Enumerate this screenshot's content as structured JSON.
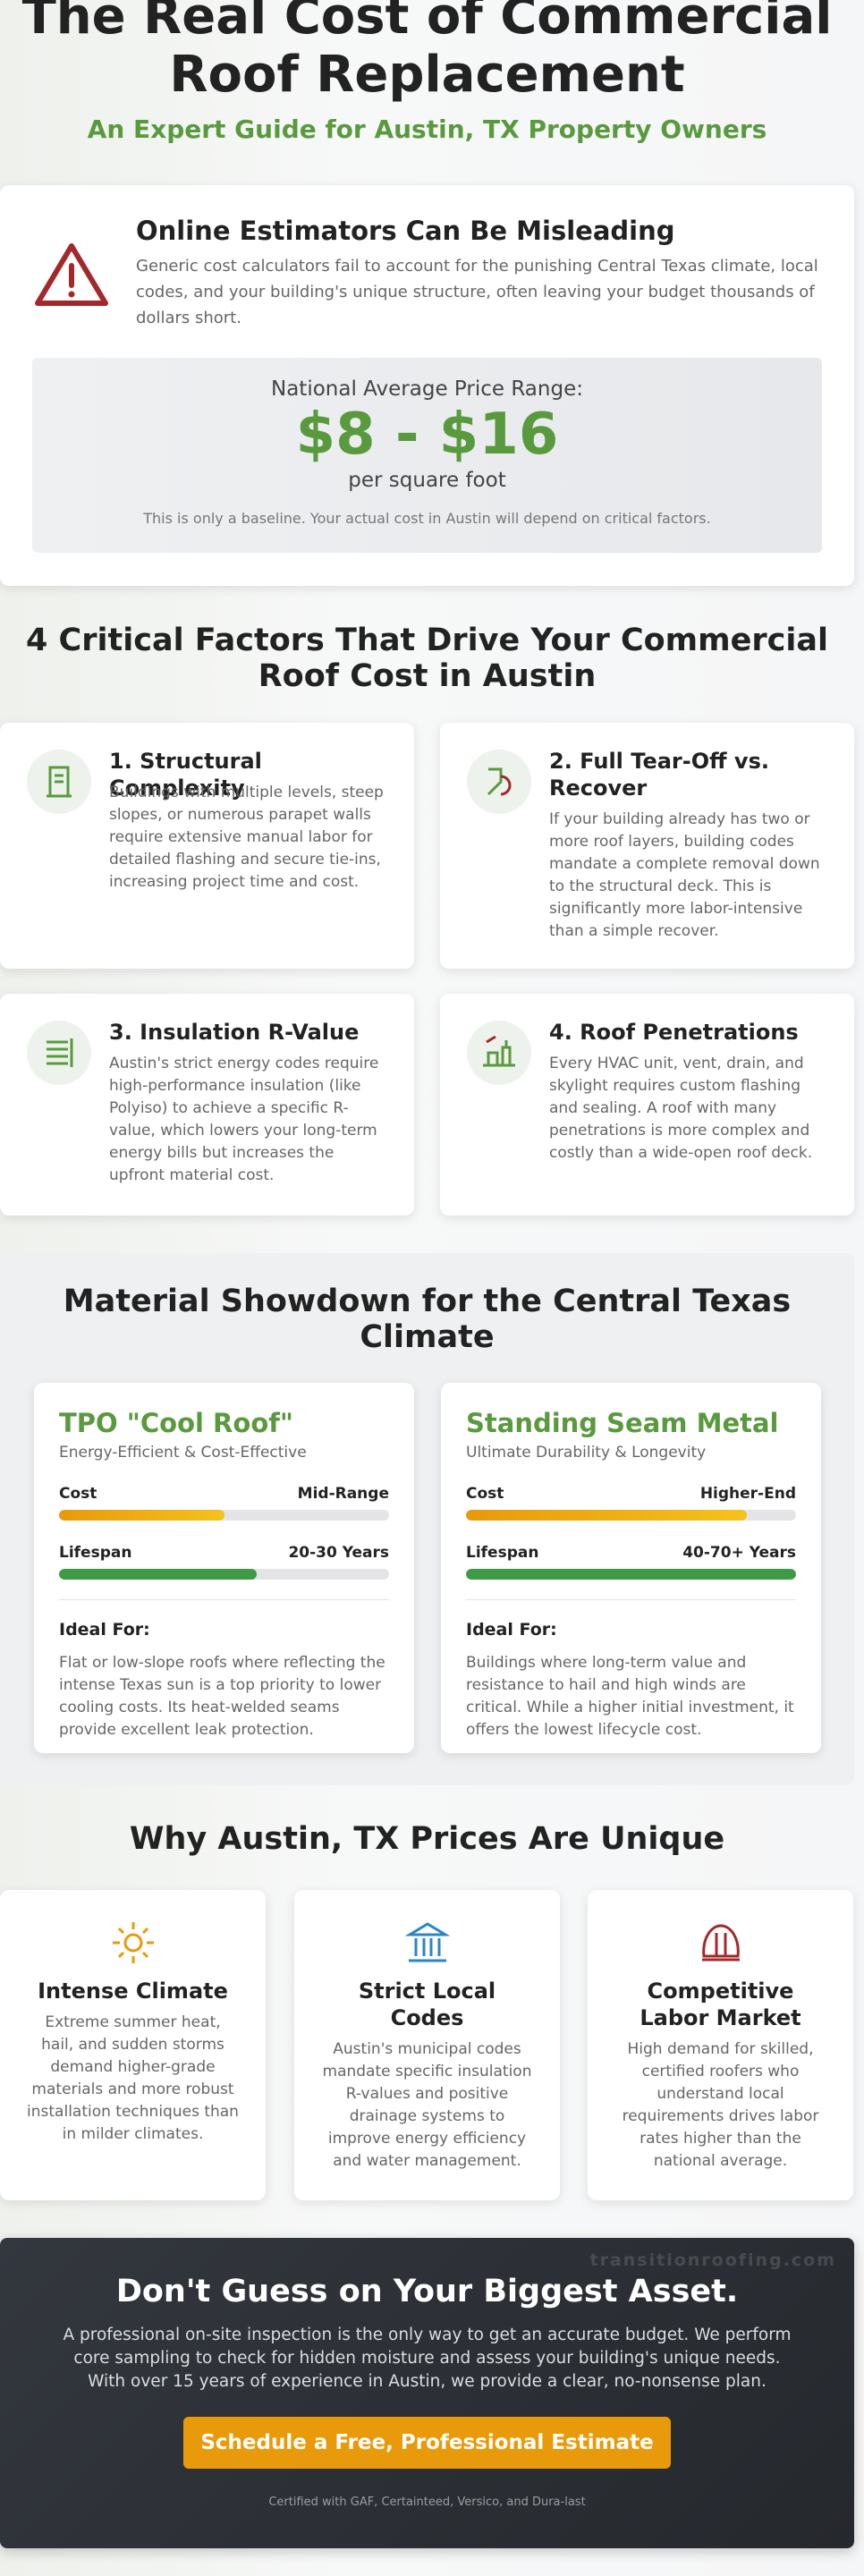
{
  "header": {
    "title": "The Real Cost of Commercial Roof Replacement",
    "subtitle": "An Expert Guide for Austin, TX Property Owners"
  },
  "warning": {
    "heading": "Online Estimators Can Be Misleading",
    "text": "Generic cost calculators fail to account for the punishing Central Texas climate, local codes, and your building's unique structure, often leaving your budget thousands of dollars short.",
    "price_label": "National Average Price Range:",
    "price": "$8 - $16",
    "price_unit": "per square foot",
    "note": "This is only a baseline. Your actual cost in Austin will depend on critical factors."
  },
  "factors": {
    "heading": "4 Critical Factors That Drive Your Commercial Roof Cost in Austin",
    "items": [
      {
        "title": "1. Structural Complexity",
        "text": "Buildings with multiple levels, steep slopes, or numerous parapet walls require extensive manual labor for detailed flashing and secure tie-ins, increasing project time and cost."
      },
      {
        "title": "2. Full Tear-Off vs. Recover",
        "text": "If your building already has two or more roof layers, building codes mandate a complete removal down to the structural deck. This is significantly more labor-intensive than a simple recover."
      },
      {
        "title": "3. Insulation R-Value",
        "text": "Austin's strict energy codes require high-performance insulation (like Polyiso) to achieve a specific R-value, which lowers your long-term energy bills but increases the upfront material cost."
      },
      {
        "title": "4. Roof Penetrations",
        "text": "Every HVAC unit, vent, drain, and skylight requires custom flashing and sealing. A roof with many penetrations is more complex and costly than a wide-open roof deck."
      }
    ]
  },
  "materials": {
    "heading": "Material Showdown for the Central Texas Climate",
    "items": [
      {
        "name": "TPO \"Cool Roof\"",
        "tagline": "Energy-Efficient & Cost-Effective",
        "cost_label": "Cost",
        "cost_value": "Mid-Range",
        "lifespan_label": "Lifespan",
        "lifespan_value": "20-30 Years",
        "ideal_label": "Ideal For:",
        "ideal_text": "Flat or low-slope roofs where reflecting the intense Texas sun is a top priority to lower cooling costs. Its heat-welded seams provide excellent leak protection."
      },
      {
        "name": "Standing Seam Metal",
        "tagline": "Ultimate Durability & Longevity",
        "cost_label": "Cost",
        "cost_value": "Higher-End",
        "lifespan_label": "Lifespan",
        "lifespan_value": "40-70+ Years",
        "ideal_label": "Ideal For:",
        "ideal_text": "Buildings where long-term value and resistance to hail and high winds are critical. While a higher initial investment, it offers the lowest lifecycle cost."
      }
    ]
  },
  "unique": {
    "heading": "Why Austin, TX Prices Are Unique",
    "items": [
      {
        "title": "Intense Climate",
        "text": "Extreme summer heat, hail, and sudden storms demand higher-grade materials and more robust installation techniques than in milder climates."
      },
      {
        "title": "Strict Local Codes",
        "text": "Austin's municipal codes mandate specific insulation R-values and positive drainage systems to improve energy efficiency and water management."
      },
      {
        "title": "Competitive Labor Market",
        "text": "High demand for skilled, certified roofers who understand local requirements drives labor rates higher than the national average."
      }
    ]
  },
  "cta": {
    "watermark": "transitionroofing.com",
    "heading": "Don't Guess on Your Biggest Asset.",
    "text": "A professional on-site inspection is the only way to get an accurate budget. We perform core sampling to check for hidden moisture and assess your building's unique needs. With over 15 years of experience in Austin, we provide a clear, no-nonsense plan.",
    "button": "Schedule a Free, Professional Estimate",
    "footer": "Certified with GAF, Certainteed, Versico, and Dura-last"
  }
}
